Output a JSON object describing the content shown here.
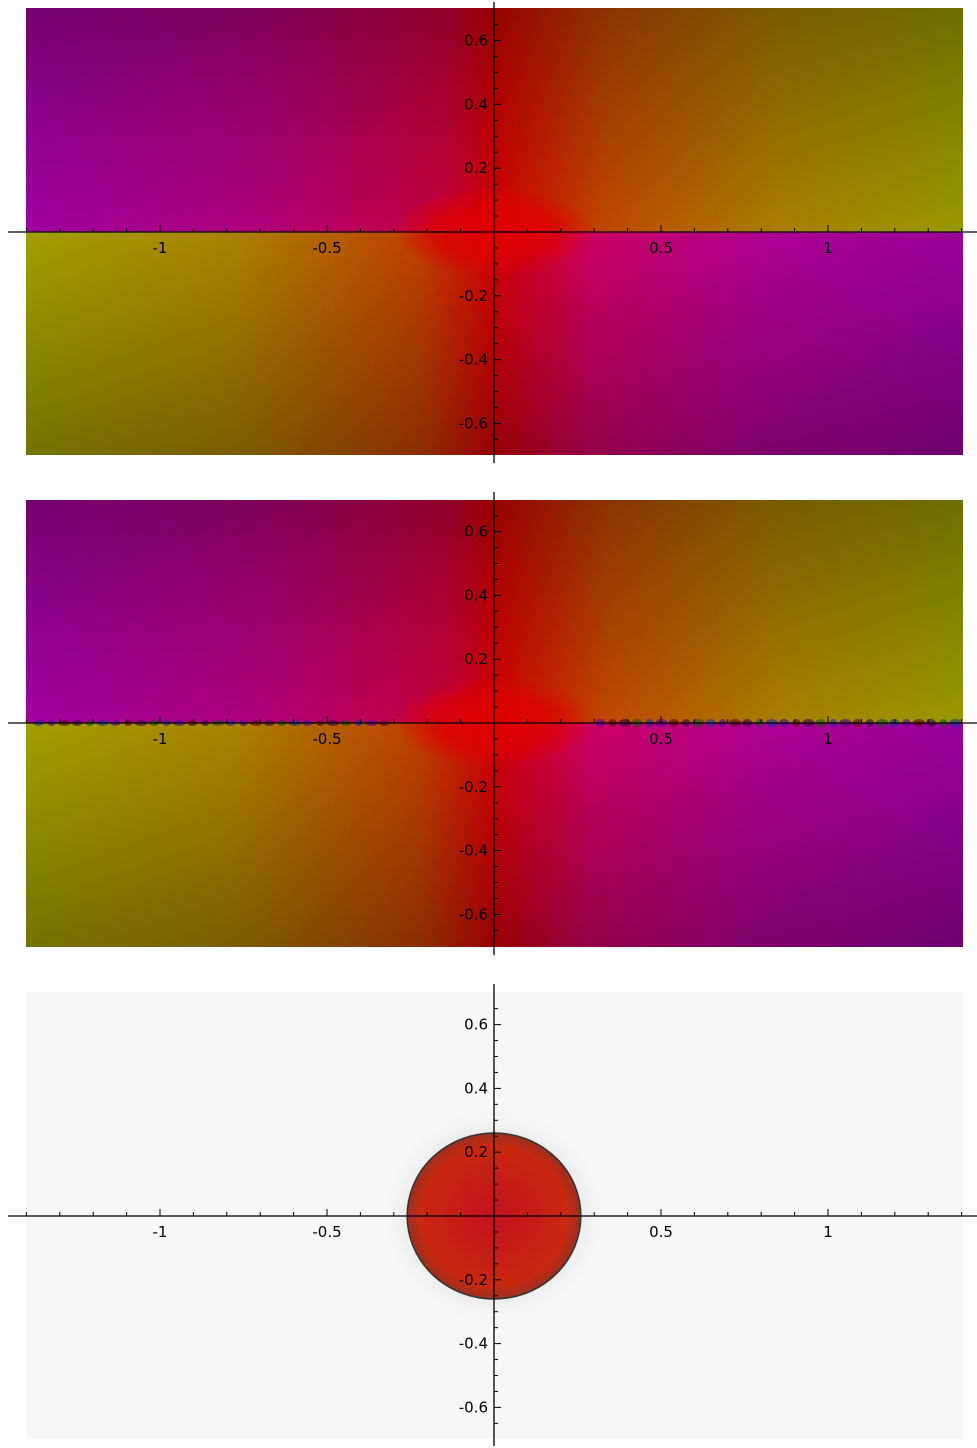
{
  "chart_data": [
    {
      "type": "heatmap",
      "title": "",
      "xlabel": "",
      "ylabel": "",
      "xlim": [
        -1.4,
        1.4
      ],
      "ylim": [
        -0.67,
        0.67
      ],
      "xticks_major": [
        -1,
        -0.5,
        0.5,
        1
      ],
      "xtick_labels": [
        "-1",
        "-0.5",
        "0.5",
        "1"
      ],
      "yticks_major": [
        0.6,
        0.4,
        0.2,
        -0.2,
        -0.4,
        -0.6
      ],
      "ytick_labels": [
        "0.6",
        "0.4",
        "0.2",
        "-0.2",
        "-0.4",
        "-0.6"
      ],
      "grid": false,
      "colors": {
        "magenta": "#b000b0",
        "red": "#d40000",
        "olive": "#9aa000",
        "brown": "#8a5a00"
      }
    },
    {
      "type": "heatmap",
      "title": "",
      "xlabel": "",
      "ylabel": "",
      "xlim": [
        -1.4,
        1.4
      ],
      "ylim": [
        -0.67,
        0.67
      ],
      "xticks_major": [
        -1,
        -0.5,
        0.5,
        1
      ],
      "xtick_labels": [
        "-1",
        "-0.5",
        "0.5",
        "1"
      ],
      "yticks_major": [
        0.6,
        0.4,
        0.2,
        -0.2,
        -0.4,
        -0.6
      ],
      "ytick_labels": [
        "0.6",
        "0.4",
        "0.2",
        "-0.2",
        "-0.4",
        "-0.6"
      ],
      "grid": false,
      "colors": {
        "magenta": "#b000b0",
        "red": "#d40000",
        "olive": "#9aa000",
        "brown": "#8a5a00"
      }
    },
    {
      "type": "heatmap",
      "title": "",
      "xlabel": "",
      "ylabel": "",
      "xlim": [
        -1.4,
        1.4
      ],
      "ylim": [
        -0.67,
        0.67
      ],
      "disk_radius": 0.26,
      "xticks_major": [
        -1,
        -0.5,
        0.5,
        1
      ],
      "xtick_labels": [
        "-1",
        "-0.5",
        "0.5",
        "1"
      ],
      "yticks_major": [
        0.6,
        0.4,
        0.2,
        -0.2,
        -0.4,
        -0.6
      ],
      "ytick_labels": [
        "0.6",
        "0.4",
        "0.2",
        "-0.2",
        "-0.4",
        "-0.6"
      ],
      "grid": false,
      "colors": {
        "disk": "#c81818",
        "background": "#f7f7f7"
      }
    }
  ]
}
